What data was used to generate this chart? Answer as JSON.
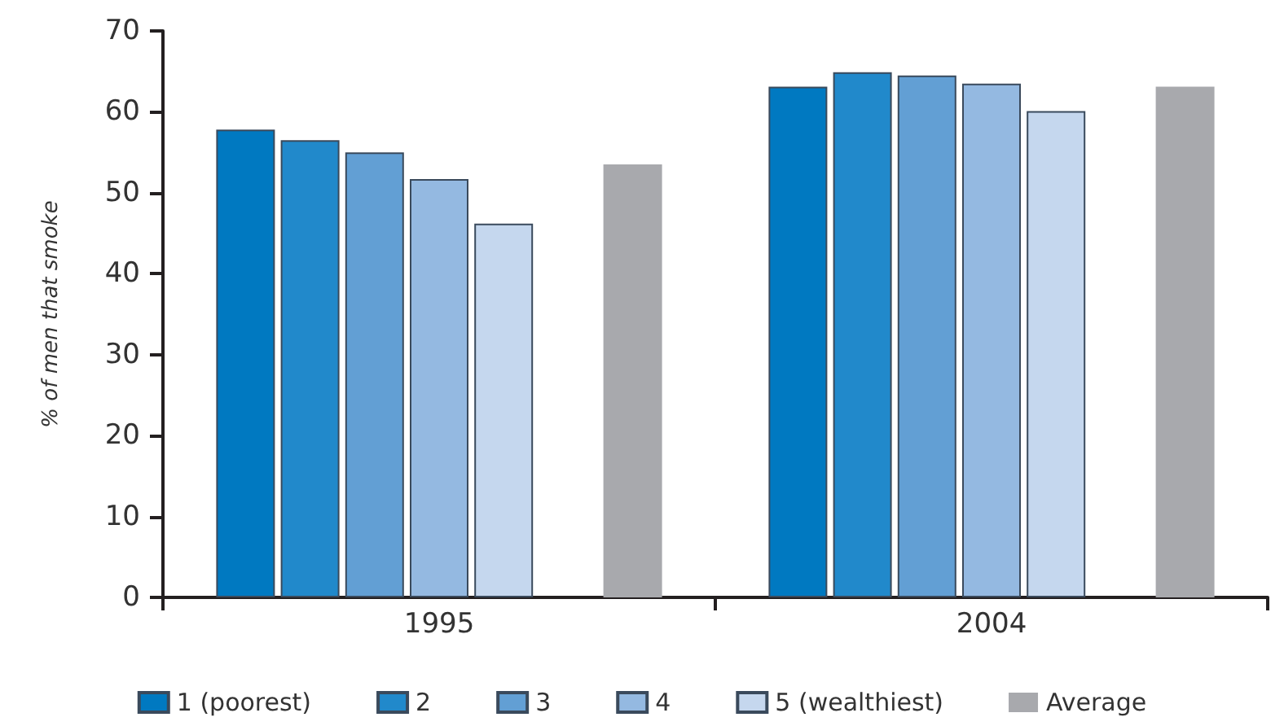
{
  "chart_data": {
    "type": "bar",
    "ylabel": "% of men that smoke",
    "categories": [
      "1995",
      "2004"
    ],
    "series": [
      {
        "name": "1 (poorest)",
        "color": "#0079c1",
        "values": [
          57.8,
          63.1
        ]
      },
      {
        "name": "2",
        "color": "#2189cb",
        "values": [
          56.5,
          64.9
        ]
      },
      {
        "name": "3",
        "color": "#629fd4",
        "values": [
          55.0,
          64.5
        ]
      },
      {
        "name": "4",
        "color": "#94b9e1",
        "values": [
          51.7,
          63.5
        ]
      },
      {
        "name": "5 (wealthiest)",
        "color": "#c5d7ee",
        "values": [
          46.2,
          60.1
        ]
      },
      {
        "name": "Average",
        "color": "#a8a9ad",
        "values": [
          53.5,
          63.1
        ]
      }
    ],
    "ylim": [
      0,
      70
    ],
    "yticks": [
      0,
      10,
      20,
      30,
      40,
      50,
      60,
      70
    ],
    "grid": false,
    "legend": "bottom"
  }
}
